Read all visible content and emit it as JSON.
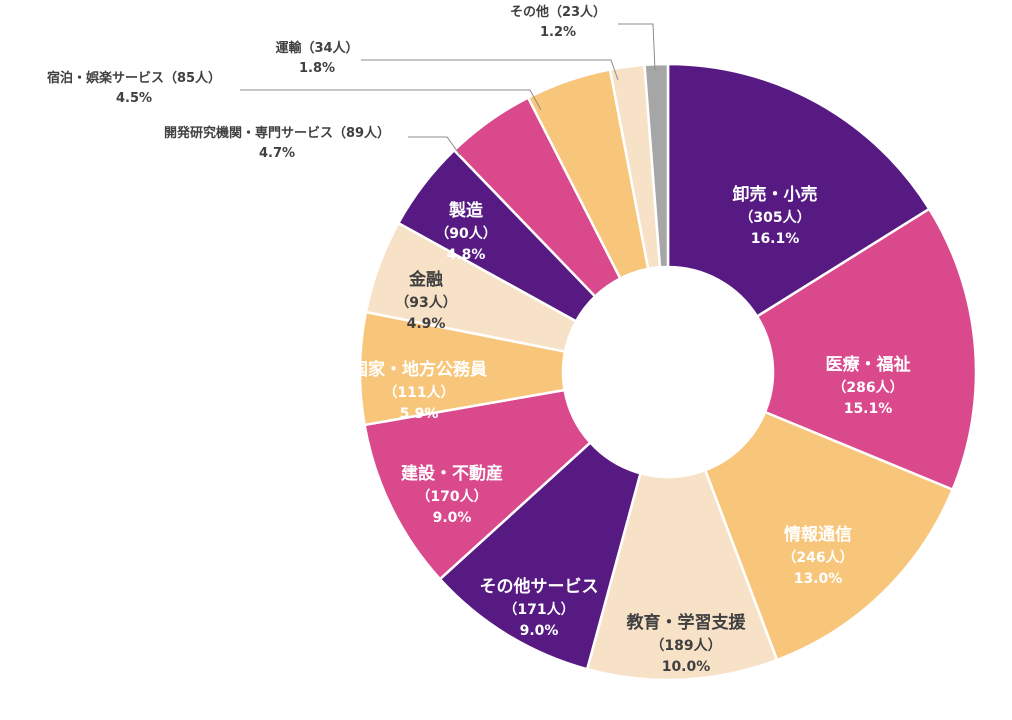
{
  "chart_data": {
    "type": "pie",
    "variant": "donut",
    "start_angle_deg": 0,
    "direction": "clockwise",
    "slices": [
      {
        "name": "卸売・小売",
        "count_label": "（305人）",
        "pct_label": "16.1%",
        "value": 305,
        "color": "#561a82",
        "text_color": "#ffffff",
        "label_position": "inside"
      },
      {
        "name": "医療・福祉",
        "count_label": "（286人）",
        "pct_label": "15.1%",
        "value": 286,
        "color": "#d9498c",
        "text_color": "#ffffff",
        "label_position": "inside"
      },
      {
        "name": "情報通信",
        "count_label": "（246人）",
        "pct_label": "13.0%",
        "value": 246,
        "color": "#f8c67b",
        "text_color": "#ffffff",
        "label_position": "inside"
      },
      {
        "name": "教育・学習支援",
        "count_label": "（189人）",
        "pct_label": "10.0%",
        "value": 189,
        "color": "#f7e2c8",
        "text_color": "#404040",
        "label_position": "inside"
      },
      {
        "name": "その他サービス",
        "count_label": "（171人）",
        "pct_label": "9.0%",
        "value": 171,
        "color": "#561a82",
        "text_color": "#ffffff",
        "label_position": "inside"
      },
      {
        "name": "建設・不動産",
        "count_label": "（170人）",
        "pct_label": "9.0%",
        "value": 170,
        "color": "#d9498c",
        "text_color": "#ffffff",
        "label_position": "inside"
      },
      {
        "name": "国家・地方公務員",
        "count_label": "（111人）",
        "pct_label": "5.9%",
        "value": 111,
        "color": "#f8c67b",
        "text_color": "#ffffff",
        "label_position": "inside"
      },
      {
        "name": "金融",
        "count_label": "（93人）",
        "pct_label": "4.9%",
        "value": 93,
        "color": "#f7e2c8",
        "text_color": "#404040",
        "label_position": "inside"
      },
      {
        "name": "製造",
        "count_label": "（90人）",
        "pct_label": "4.8%",
        "value": 90,
        "color": "#561a82",
        "text_color": "#ffffff",
        "label_position": "inside"
      },
      {
        "name": "開発研究機関・専門サービス",
        "count_label": "（89人）",
        "pct_label": "4.7%",
        "value": 89,
        "color": "#d9498c",
        "text_color": "#404040",
        "label_position": "outside"
      },
      {
        "name": "宿泊・娯楽サービス",
        "count_label": "（85人）",
        "pct_label": "4.5%",
        "value": 85,
        "color": "#f8c67b",
        "text_color": "#404040",
        "label_position": "outside"
      },
      {
        "name": "運輸",
        "count_label": "（34人）",
        "pct_label": "1.8%",
        "value": 34,
        "color": "#f7e2c8",
        "text_color": "#404040",
        "label_position": "outside"
      },
      {
        "name": "その他",
        "count_label": "（23人）",
        "pct_label": "1.2%",
        "value": 23,
        "color": "#a6a6a6",
        "text_color": "#404040",
        "label_position": "outside"
      }
    ],
    "title": "",
    "legend": "none"
  }
}
